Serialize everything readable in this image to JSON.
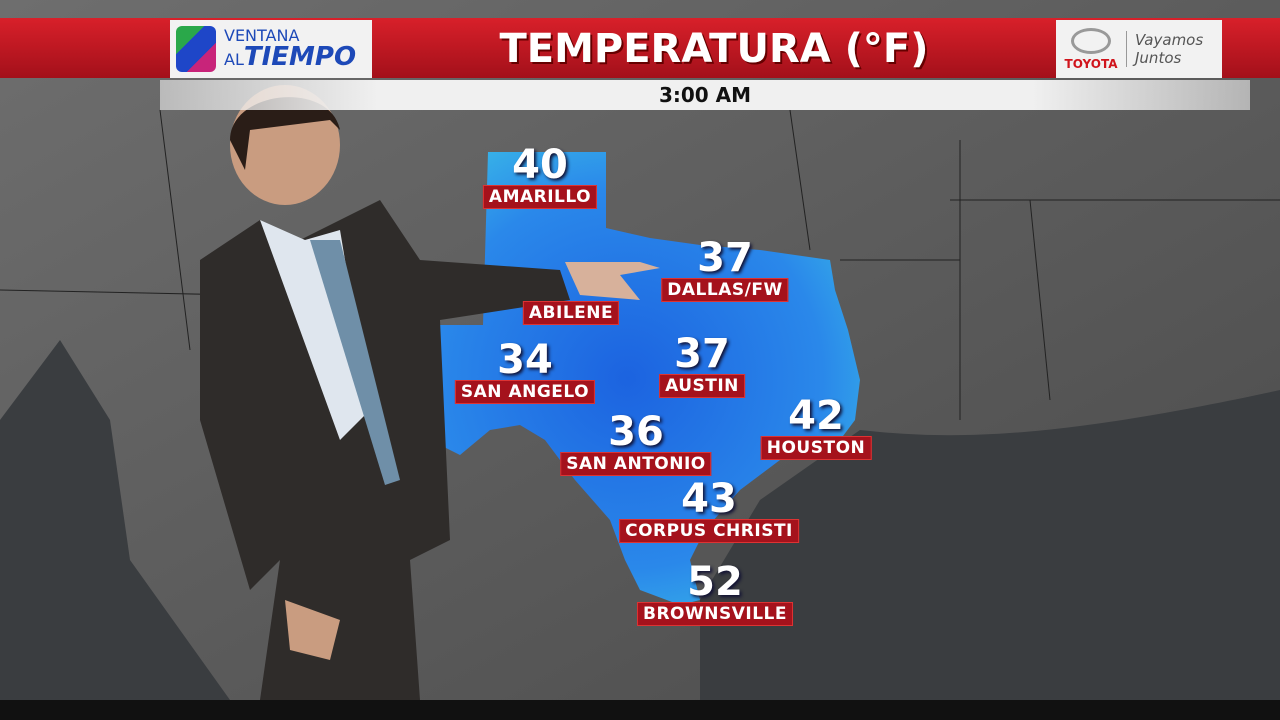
{
  "header": {
    "brand_line1": "VENTANA",
    "brand_al": "AL",
    "brand_line2": "TIEMPO",
    "title": "TEMPERATURA (°F)",
    "time": "3:00 AM",
    "sponsor": "TOYOTA",
    "sponsor_tagline1": "Vayamos",
    "sponsor_tagline2": "Juntos"
  },
  "colors": {
    "banner_red": "#c8151f",
    "label_red": "#a5121c",
    "texas_blue": "#1f6ee0"
  },
  "cities": [
    {
      "name": "AMARILLO",
      "temp": "40"
    },
    {
      "name": "DALLAS/FW",
      "temp": "37"
    },
    {
      "name": "ABILENE"
    },
    {
      "name": "SAN ANGELO",
      "temp": "34"
    },
    {
      "name": "AUSTIN",
      "temp": "37"
    },
    {
      "name": "HOUSTON",
      "temp": "42"
    },
    {
      "name": "SAN ANTONIO",
      "temp": "36"
    },
    {
      "name": "CORPUS CHRISTI",
      "temp": "43"
    },
    {
      "name": "BROWNSVILLE",
      "temp": "52"
    }
  ]
}
